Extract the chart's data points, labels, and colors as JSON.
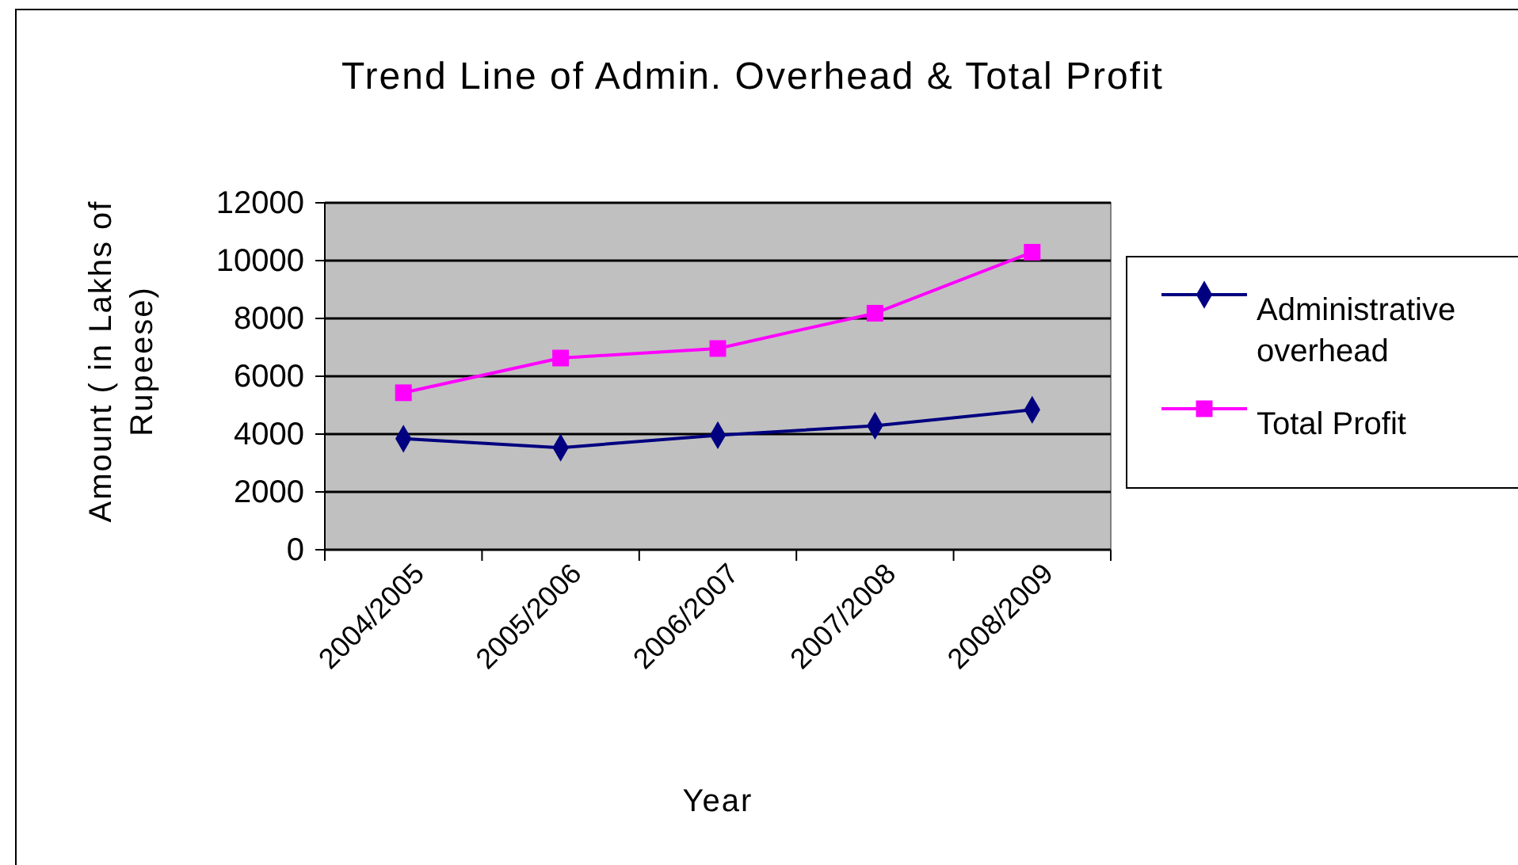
{
  "chart_data": {
    "type": "line",
    "title": "Trend Line of Admin. Overhead & Total Profit",
    "xlabel": "Year",
    "ylabel": "Amount ( in Lakhs of Rupeese)",
    "categories": [
      "2004/2005",
      "2005/2006",
      "2006/2007",
      "2007/2008",
      "2008/2009"
    ],
    "series": [
      {
        "name": "Administrative overhead",
        "color": "#000080",
        "marker": "diamond",
        "values": [
          3840,
          3530,
          3960,
          4290,
          4840
        ]
      },
      {
        "name": "Total Profit",
        "color": "#ff00ff",
        "marker": "square",
        "values": [
          5430,
          6630,
          6960,
          8180,
          10290
        ]
      }
    ],
    "ylim": [
      0,
      12000
    ],
    "yticks": [
      0,
      2000,
      4000,
      6000,
      8000,
      10000,
      12000
    ],
    "grid": "y",
    "legend": "right"
  }
}
